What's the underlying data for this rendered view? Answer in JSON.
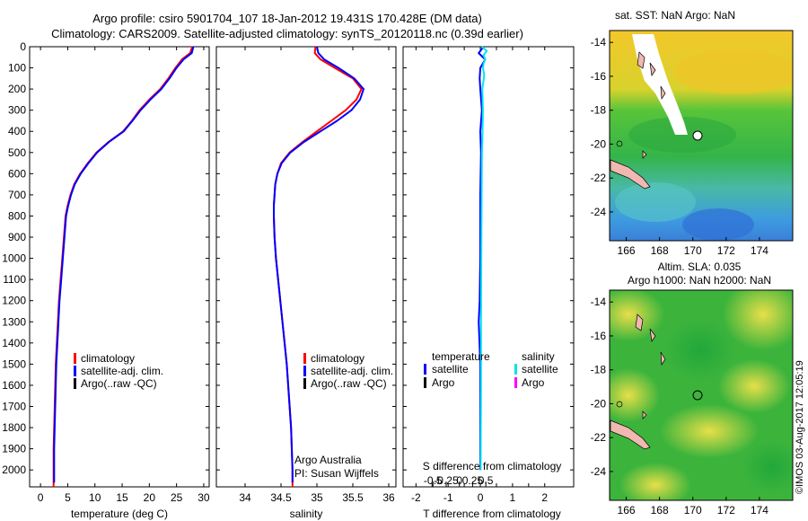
{
  "header": {
    "title_line1": "Argo profile: csiro 5901704_107 18-Jan-2012 19.431S 170.428E (DM data)",
    "title_line2": "Climatology: CARS2009. Satellite-adjusted climatology: synTS_20120118.nc (0.39d earlier)"
  },
  "colors": {
    "climatology": "#ff0000",
    "satellite_adj": "#0000ff",
    "argo": "#000000",
    "sal_satellite": "#00e5ee",
    "sal_argo": "#ff00ff"
  },
  "chart_data": [
    {
      "type": "line",
      "id": "temperature",
      "xlabel": "temperature (deg C)",
      "ylabel": "",
      "xlim": [
        -2,
        31
      ],
      "ylim": [
        2080,
        0
      ],
      "xticks": [
        0,
        5,
        10,
        15,
        20,
        25,
        30
      ],
      "yticks": [
        0,
        100,
        200,
        300,
        400,
        500,
        600,
        700,
        800,
        900,
        1000,
        1100,
        1200,
        1300,
        1400,
        1500,
        1600,
        1700,
        1800,
        1900,
        2000
      ],
      "legend": [
        "climatology",
        "satellite-adj. clim.",
        "Argo(..raw -QC)"
      ],
      "series": [
        {
          "name": "climatology",
          "color": "#ff0000",
          "points": [
            [
              27.9,
              0
            ],
            [
              27.5,
              30
            ],
            [
              26.0,
              60
            ],
            [
              24.8,
              100
            ],
            [
              23.5,
              150
            ],
            [
              22.0,
              200
            ],
            [
              20.0,
              250
            ],
            [
              18.2,
              300
            ],
            [
              16.8,
              350
            ],
            [
              15.2,
              400
            ],
            [
              12.5,
              450
            ],
            [
              10.3,
              500
            ],
            [
              8.7,
              550
            ],
            [
              7.3,
              600
            ],
            [
              6.2,
              650
            ],
            [
              5.5,
              700
            ],
            [
              5.0,
              750
            ],
            [
              4.6,
              800
            ],
            [
              4.3,
              900
            ],
            [
              4.0,
              1000
            ],
            [
              3.7,
              1100
            ],
            [
              3.4,
              1200
            ],
            [
              3.2,
              1300
            ],
            [
              3.0,
              1400
            ],
            [
              2.8,
              1500
            ],
            [
              2.7,
              1600
            ],
            [
              2.6,
              1700
            ],
            [
              2.5,
              1800
            ],
            [
              2.4,
              1900
            ],
            [
              2.4,
              2000
            ],
            [
              2.4,
              2080
            ]
          ]
        },
        {
          "name": "satellite-adj. clim.",
          "color": "#0000ff",
          "points": [
            [
              28.1,
              0
            ],
            [
              27.8,
              30
            ],
            [
              26.3,
              60
            ],
            [
              25.0,
              100
            ],
            [
              23.7,
              150
            ],
            [
              22.2,
              200
            ],
            [
              20.2,
              250
            ],
            [
              18.4,
              300
            ],
            [
              16.9,
              350
            ],
            [
              15.3,
              400
            ],
            [
              12.6,
              450
            ],
            [
              10.4,
              500
            ],
            [
              8.8,
              550
            ],
            [
              7.4,
              600
            ],
            [
              6.3,
              650
            ],
            [
              5.6,
              700
            ],
            [
              5.1,
              750
            ],
            [
              4.7,
              800
            ],
            [
              4.4,
              900
            ],
            [
              4.1,
              1000
            ],
            [
              3.8,
              1100
            ],
            [
              3.5,
              1200
            ],
            [
              3.3,
              1300
            ],
            [
              3.1,
              1400
            ],
            [
              2.9,
              1500
            ],
            [
              2.8,
              1600
            ],
            [
              2.7,
              1700
            ],
            [
              2.6,
              1800
            ],
            [
              2.5,
              1900
            ],
            [
              2.5,
              2000
            ],
            [
              2.5,
              2060
            ]
          ]
        }
      ],
      "note_lines": []
    },
    {
      "type": "line",
      "id": "salinity",
      "xlabel": "salinity",
      "ylabel": "",
      "xlim": [
        33.6,
        36.1
      ],
      "ylim": [
        2080,
        0
      ],
      "xticks": [
        34,
        34.5,
        35,
        35.5,
        36
      ],
      "legend": [
        "climatology",
        "satellite-adj. clim.",
        "Argo(..raw -QC)"
      ],
      "series": [
        {
          "name": "climatology",
          "color": "#ff0000",
          "points": [
            [
              34.98,
              0
            ],
            [
              34.97,
              30
            ],
            [
              35.05,
              60
            ],
            [
              35.25,
              100
            ],
            [
              35.5,
              150
            ],
            [
              35.62,
              200
            ],
            [
              35.55,
              250
            ],
            [
              35.4,
              300
            ],
            [
              35.2,
              350
            ],
            [
              35.0,
              400
            ],
            [
              34.8,
              450
            ],
            [
              34.62,
              500
            ],
            [
              34.5,
              550
            ],
            [
              34.45,
              600
            ],
            [
              34.42,
              650
            ],
            [
              34.41,
              700
            ],
            [
              34.4,
              750
            ],
            [
              34.4,
              800
            ],
            [
              34.41,
              900
            ],
            [
              34.43,
              1000
            ],
            [
              34.46,
              1100
            ],
            [
              34.49,
              1200
            ],
            [
              34.52,
              1300
            ],
            [
              34.55,
              1400
            ],
            [
              34.58,
              1500
            ],
            [
              34.6,
              1600
            ],
            [
              34.62,
              1700
            ],
            [
              34.64,
              1800
            ],
            [
              34.65,
              1900
            ],
            [
              34.66,
              2000
            ],
            [
              34.66,
              2080
            ]
          ]
        },
        {
          "name": "satellite-adj. clim.",
          "color": "#0000ff",
          "points": [
            [
              35.0,
              0
            ],
            [
              35.02,
              30
            ],
            [
              35.1,
              60
            ],
            [
              35.3,
              100
            ],
            [
              35.52,
              150
            ],
            [
              35.65,
              200
            ],
            [
              35.6,
              250
            ],
            [
              35.48,
              300
            ],
            [
              35.28,
              350
            ],
            [
              35.05,
              400
            ],
            [
              34.82,
              450
            ],
            [
              34.63,
              500
            ],
            [
              34.51,
              550
            ],
            [
              34.45,
              600
            ],
            [
              34.42,
              650
            ],
            [
              34.41,
              700
            ],
            [
              34.4,
              750
            ],
            [
              34.4,
              800
            ],
            [
              34.41,
              900
            ],
            [
              34.43,
              1000
            ],
            [
              34.46,
              1100
            ],
            [
              34.49,
              1200
            ],
            [
              34.52,
              1300
            ],
            [
              34.55,
              1400
            ],
            [
              34.58,
              1500
            ],
            [
              34.6,
              1600
            ],
            [
              34.62,
              1700
            ],
            [
              34.64,
              1800
            ],
            [
              34.65,
              1900
            ],
            [
              34.66,
              2000
            ],
            [
              34.66,
              2060
            ]
          ]
        }
      ],
      "note_lines": [
        "Argo Australia",
        "PI: Susan Wijffels"
      ]
    },
    {
      "type": "line",
      "id": "difference",
      "xlabel": "T difference from climatology",
      "xlabel_top": "S difference from climatology",
      "xlim": [
        -2.4,
        2.9
      ],
      "ylim": [
        2080,
        0
      ],
      "xticks": [
        -2,
        -1.5,
        -1,
        -0.5,
        0,
        0.5,
        1,
        1.5,
        2
      ],
      "xtick_labels": [
        "-2",
        "",
        "-1",
        "",
        "0",
        "",
        "1",
        "",
        "2"
      ],
      "xticks_top": [
        -0.5,
        -0.25,
        0,
        0.25,
        0.5
      ],
      "xtick_labels_top": [
        "-0.5",
        "-0.25",
        "0",
        "0.25",
        "0.5"
      ],
      "legend_temperature": [
        "temperature",
        "satellite",
        "Argo"
      ],
      "legend_salinity": [
        "salinity",
        "satellite",
        "Argo"
      ],
      "series": [
        {
          "name": "T satellite",
          "color": "#0000ff",
          "points": [
            [
              0.1,
              0
            ],
            [
              -0.05,
              30
            ],
            [
              0.15,
              60
            ],
            [
              0.0,
              100
            ],
            [
              -0.02,
              150
            ],
            [
              0.0,
              200
            ],
            [
              0.05,
              300
            ],
            [
              0.0,
              400
            ],
            [
              0.02,
              500
            ],
            [
              0.0,
              700
            ],
            [
              0.0,
              1000
            ],
            [
              -0.02,
              1200
            ],
            [
              -0.05,
              1300
            ],
            [
              0.0,
              1500
            ],
            [
              0.0,
              2000
            ]
          ]
        },
        {
          "name": "S satellite",
          "color": "#00e5ee",
          "points": [
            [
              0.05,
              0
            ],
            [
              0.2,
              20
            ],
            [
              0.1,
              40
            ],
            [
              0.15,
              60
            ],
            [
              0.1,
              80
            ],
            [
              0.08,
              100
            ],
            [
              0.12,
              130
            ],
            [
              0.1,
              160
            ],
            [
              0.06,
              200
            ],
            [
              0.08,
              300
            ],
            [
              0.07,
              400
            ],
            [
              0.05,
              500
            ],
            [
              0.04,
              700
            ],
            [
              0.03,
              1000
            ],
            [
              0.02,
              1300
            ],
            [
              0.02,
              1600
            ],
            [
              0.01,
              2000
            ]
          ]
        }
      ],
      "note_lines": []
    }
  ],
  "maps": [
    {
      "title": "sat. SST: NaN Argo: NaN",
      "title2": "",
      "lon_ticks": [
        166,
        168,
        170,
        172,
        174
      ],
      "lat_ticks": [
        -14,
        -16,
        -18,
        -20,
        -22,
        -24
      ]
    },
    {
      "title": "Altim. SLA: 0.035",
      "title2": "Argo h1000: NaN h2000: NaN",
      "lon_ticks": [
        166,
        168,
        170,
        172,
        174
      ],
      "lat_ticks": [
        -14,
        -16,
        -18,
        -20,
        -22,
        -24
      ]
    }
  ],
  "credit": "©IMOS 03-Aug-2017 12:05:19"
}
